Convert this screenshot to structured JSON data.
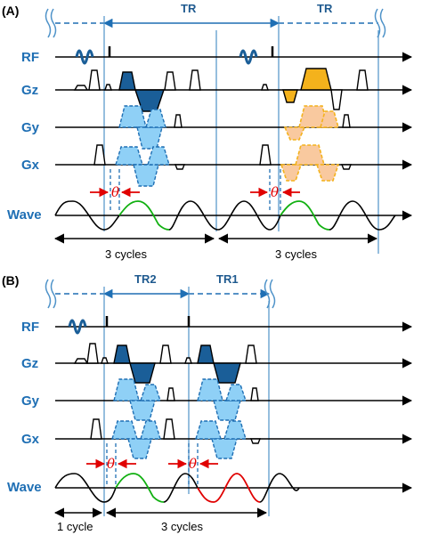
{
  "panels": [
    {
      "id": "A",
      "label": "(A)",
      "tr_labels": [
        "TR",
        "TR"
      ],
      "rows": [
        "RF",
        "Gz",
        "Gy",
        "Gx",
        "Wave"
      ],
      "theta": [
        "θ",
        "θ"
      ],
      "cycles": [
        "3 cycles",
        "3 cycles"
      ]
    },
    {
      "id": "B",
      "label": "(B)",
      "tr_labels": [
        "TR2",
        "TR1"
      ],
      "rows": [
        "RF",
        "Gz",
        "Gy",
        "Gx",
        "Wave"
      ],
      "theta": [
        "θ",
        "θ"
      ],
      "cycles": [
        "1 cycle",
        "3 cycles"
      ]
    }
  ],
  "colors": {
    "label_blue": "#1f6fb4",
    "dark_lobe": "#1a5e98",
    "light_lobe": "#8fd0f6",
    "gold_lobe": "#f4b21c",
    "peach_lobe": "#f9c99f",
    "wave_highlight_a": "#11b011",
    "wave_highlight_b": "#e00000"
  },
  "icons": [
    "rf-pulse-icon",
    "break-mark-icon",
    "double-arrow-icon"
  ]
}
